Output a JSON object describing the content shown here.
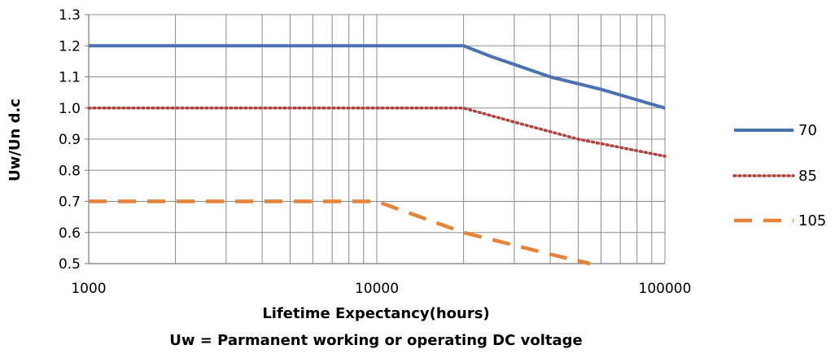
{
  "chart_data": {
    "type": "line",
    "xlabel": "Lifetime Expectancy(hours)",
    "ylabel": "Uw/Un  d.c",
    "footnote": "Uw = Parmanent working or operating DC voltage",
    "x_scale": "log",
    "xlim": [
      1000,
      100000
    ],
    "ylim": [
      0.5,
      1.3
    ],
    "x_ticks": [
      1000,
      10000,
      100000
    ],
    "x_tick_labels": [
      "1000",
      "10000",
      "100000"
    ],
    "y_ticks": [
      0.5,
      0.6,
      0.7,
      0.8,
      0.9,
      1.0,
      1.1,
      1.2,
      1.3
    ],
    "y_tick_labels": [
      "0.5",
      "0.6",
      "0.7",
      "0.8",
      "0.9",
      "1.0",
      "1.1",
      "1.2",
      "1.3"
    ],
    "grid": true,
    "legend_position": "right",
    "series": [
      {
        "name": "70",
        "style": "solid",
        "color": "#4a72b0",
        "x": [
          1000,
          15000,
          20000,
          25000,
          30000,
          40000,
          60000,
          100000
        ],
        "y": [
          1.2,
          1.2,
          1.2,
          1.165,
          1.14,
          1.1,
          1.06,
          1.0
        ]
      },
      {
        "name": "85",
        "style": "dotted",
        "color": "#b0413e",
        "x": [
          1000,
          20000,
          30000,
          50000,
          100000
        ],
        "y": [
          1.0,
          1.0,
          0.955,
          0.9,
          0.845
        ]
      },
      {
        "name": "105",
        "style": "dashed",
        "color": "#e8843a",
        "x": [
          1000,
          10000,
          20000,
          40000,
          55000
        ],
        "y": [
          0.7,
          0.7,
          0.6,
          0.53,
          0.5
        ]
      }
    ]
  }
}
